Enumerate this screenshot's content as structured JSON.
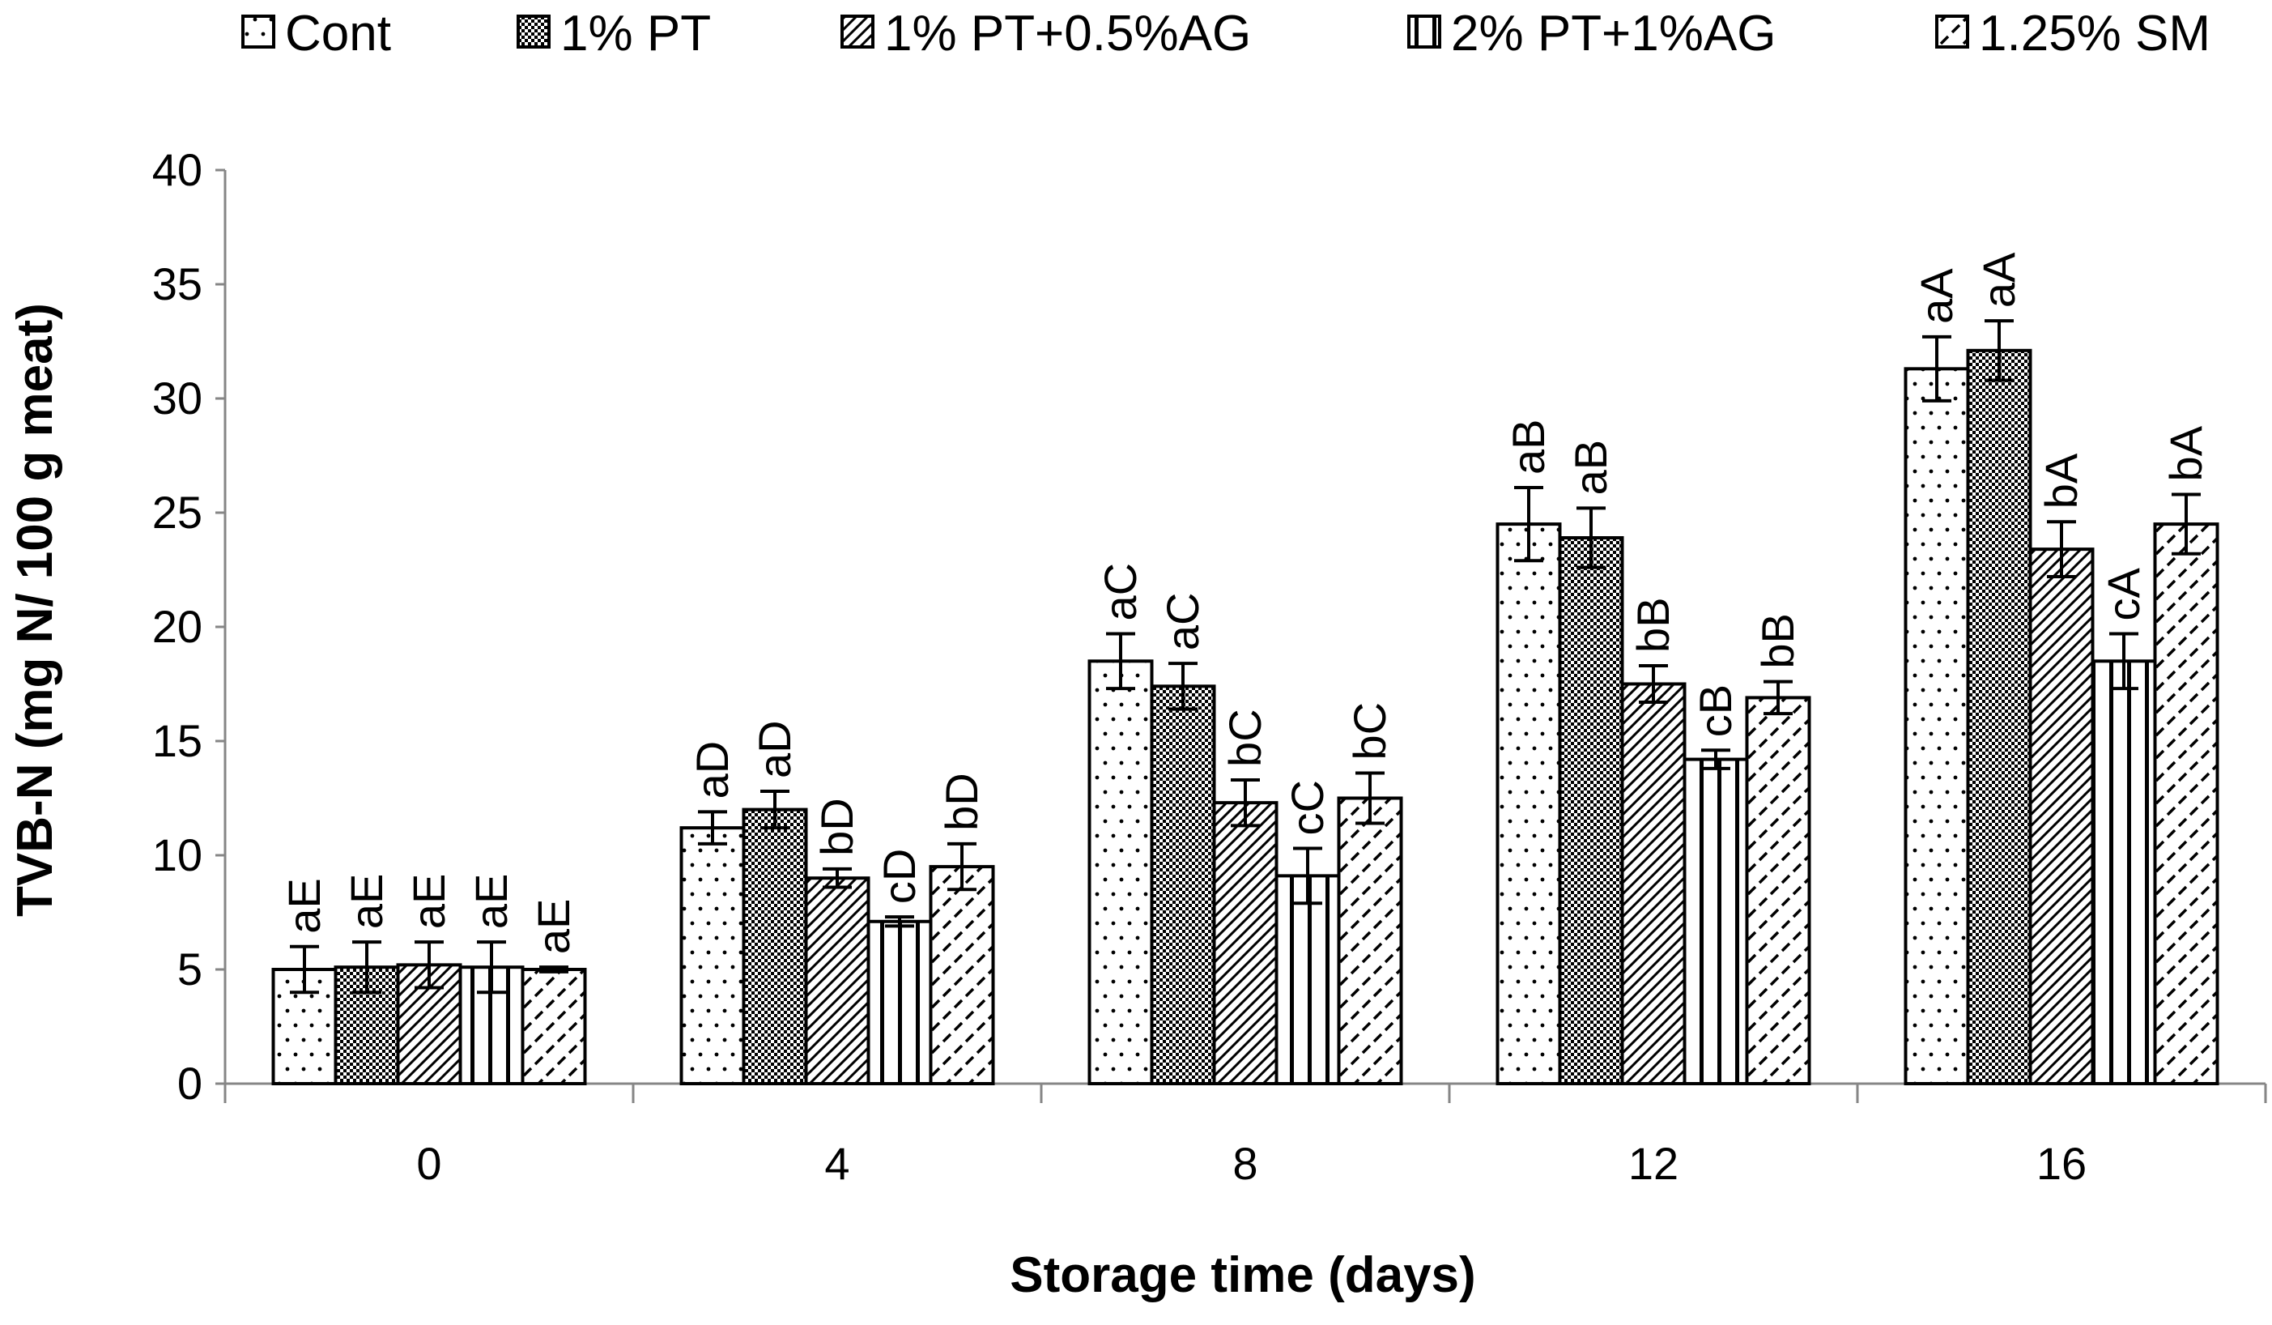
{
  "chart_data": {
    "type": "bar",
    "title": "",
    "xlabel": "Storage time (days)",
    "ylabel": "TVB-N (mg N/ 100 g meat)",
    "ylim": [
      0,
      40
    ],
    "yticks": [
      0,
      5,
      10,
      15,
      20,
      25,
      30,
      35,
      40
    ],
    "grid": false,
    "legend_position": "top",
    "categories": [
      "0",
      "4",
      "8",
      "12",
      "16"
    ],
    "series": [
      {
        "name": "Cont",
        "pattern": "dots",
        "values": [
          5.0,
          11.2,
          18.5,
          24.5,
          31.3
        ],
        "errors": [
          1.0,
          0.7,
          1.2,
          1.6,
          1.4
        ],
        "labels": [
          "aE",
          "aD",
          "aC",
          "aB",
          "aA"
        ]
      },
      {
        "name": "1% PT",
        "pattern": "checker",
        "values": [
          5.1,
          12.0,
          17.4,
          23.9,
          32.1
        ],
        "errors": [
          1.1,
          0.8,
          1.0,
          1.3,
          1.3
        ],
        "labels": [
          "aE",
          "aD",
          "aC",
          "aB",
          "aA"
        ]
      },
      {
        "name": "1% PT+0.5%AG",
        "pattern": "diag-dense",
        "values": [
          5.2,
          9.0,
          12.3,
          17.5,
          23.4
        ],
        "errors": [
          1.0,
          0.4,
          1.0,
          0.8,
          1.2
        ],
        "labels": [
          "aE",
          "bD",
          "bC",
          "bB",
          "bA"
        ]
      },
      {
        "name": "2% PT+1%AG",
        "pattern": "vertical",
        "values": [
          5.1,
          7.1,
          9.1,
          14.2,
          18.5
        ],
        "errors": [
          1.1,
          0.2,
          1.2,
          0.4,
          1.2
        ],
        "labels": [
          "aE",
          "cD",
          "cC",
          "cB",
          "cA"
        ]
      },
      {
        "name": "1.25% SM",
        "pattern": "diag-dashed",
        "values": [
          5.0,
          9.5,
          12.5,
          16.9,
          24.5
        ],
        "errors": [
          0.1,
          1.0,
          1.1,
          0.7,
          1.3
        ],
        "labels": [
          "aE",
          "bD",
          "bC",
          "bB",
          "bA"
        ]
      }
    ]
  }
}
